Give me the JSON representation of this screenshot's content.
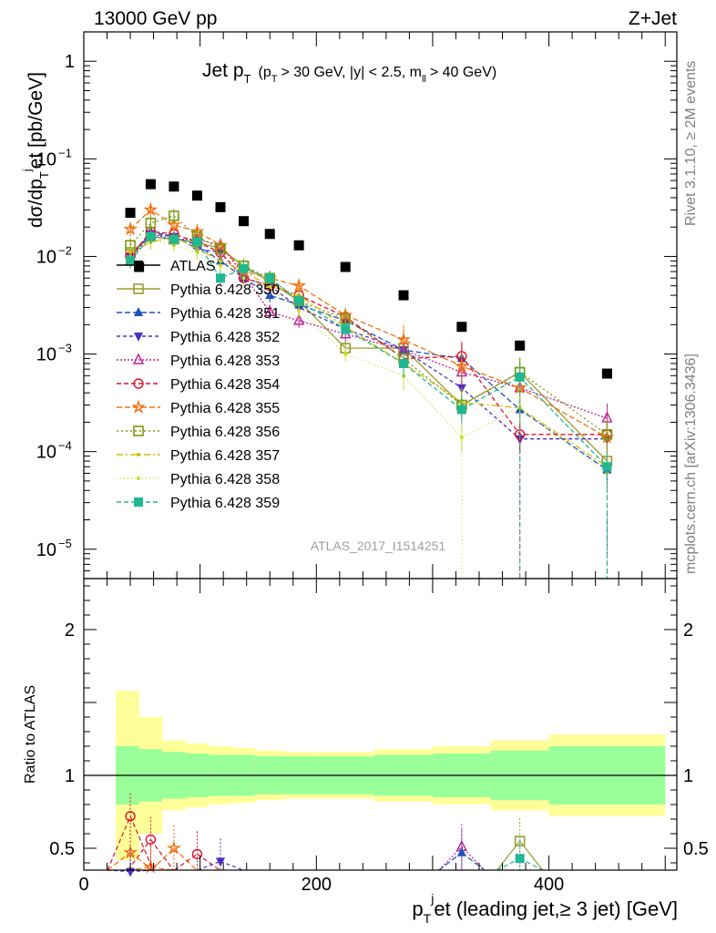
{
  "header": {
    "left": "13000 GeV pp",
    "right": "Z+Jet"
  },
  "side_text": {
    "rivet": "Rivet 3.1.10, ≥ 2M events",
    "mcplots": "mcplots.cern.ch [arXiv:1306.3436]"
  },
  "watermark": "ATLAS_2017_I1514251",
  "colors": {
    "atlas": "#000000",
    "band_inner": "#99ff99",
    "band_outer": "#ffff99"
  },
  "chart_data": [
    {
      "type": "scatter",
      "title": "Jet p_T (p_T > 30 GeV, |y| < 2.5, m_ll > 40 GeV)",
      "title_parts": {
        "main": "Jet p",
        "main_sub": "T",
        "cut_open": "(p",
        "cut_sub1": "T",
        "cut_mid": "> 30 GeV, |y| < 2.5, m",
        "cut_sub2": "ll",
        "cut_close": "> 40 GeV)"
      },
      "ylabel": "dσ/dp_T^jet [pb/GeV]",
      "ylabel_parts": {
        "a": "dσ/dp",
        "sub": "T",
        "sup": "j",
        "b": "et [pb/GeV]"
      },
      "xlim": [
        0,
        510
      ],
      "ylim": [
        5e-06,
        2
      ],
      "yscale": "log",
      "ytick_labels": {
        "1": "1",
        "0.1": "10",
        "0.01": "10",
        "0.001": "10",
        "0.0001": "10",
        "1e-05": "10"
      },
      "ytick_exps": {
        "0.1": "−1",
        "0.01": "−2",
        "0.001": "−3",
        "0.0001": "−4",
        "1e-05": "−5"
      },
      "x": [
        40,
        57.5,
        77.5,
        97.5,
        117.5,
        137.5,
        160,
        185,
        225,
        275,
        325,
        375,
        450
      ],
      "atlas": [
        0.028,
        0.055,
        0.052,
        0.042,
        0.032,
        0.023,
        0.017,
        0.013,
        0.0078,
        0.004,
        0.0019,
        0.00122,
        0.00063
      ],
      "atlas_extra": {
        "x": 47.5,
        "y": 0.0078
      },
      "legend": {
        "position": "middle-left",
        "entries": [
          "ATLAS",
          "Pythia 6.428 350",
          "Pythia 6.428 351",
          "Pythia 6.428 352",
          "Pythia 6.428 353",
          "Pythia 6.428 354",
          "Pythia 6.428 355",
          "Pythia 6.428 356",
          "Pythia 6.428 357",
          "Pythia 6.428 358",
          "Pythia 6.428 359"
        ]
      },
      "series": [
        {
          "name": "Pythia 6.428 350",
          "color": "#9b9b2e",
          "marker": "square-open",
          "dash": "",
          "values": [
            0.011,
            0.016,
            0.015,
            0.014,
            0.012,
            0.008,
            0.0055,
            0.0035,
            0.00115,
            0.00115,
            0.0003,
            0.00065,
            8e-05
          ]
        },
        {
          "name": "Pythia 6.428 351",
          "color": "#1f4fbf",
          "marker": "triangle-up",
          "dash": "6,3",
          "values": [
            0.0095,
            0.018,
            0.016,
            0.013,
            0.009,
            0.006,
            0.004,
            0.0032,
            0.0022,
            0.0011,
            0.0009,
            0.00027,
            6.5e-05
          ]
        },
        {
          "name": "Pythia 6.428 352",
          "color": "#4b2fbf",
          "marker": "triangle-down",
          "dash": "4,3",
          "values": [
            0.01,
            0.017,
            0.016,
            0.012,
            0.011,
            0.006,
            0.005,
            0.003,
            0.0018,
            0.0011,
            0.00045,
            0.000135,
            0.000135
          ]
        },
        {
          "name": "Pythia 6.428 353",
          "color": "#c02090",
          "marker": "triangle-up-open",
          "dash": "2,2",
          "values": [
            0.009,
            0.017,
            0.015,
            0.015,
            0.013,
            0.0065,
            0.0027,
            0.0022,
            0.0016,
            0.0011,
            0.00065,
            0.00045,
            0.00022
          ]
        },
        {
          "name": "Pythia 6.428 354",
          "color": "#e0102a",
          "marker": "circle-open",
          "dash": "5,3",
          "values": [
            0.01,
            0.018,
            0.017,
            0.014,
            0.011,
            0.006,
            0.005,
            0.004,
            0.0024,
            0.0009,
            0.00095,
            0.00015,
            0.00015
          ]
        },
        {
          "name": "Pythia 6.428 355",
          "color": "#f07010",
          "marker": "star",
          "dash": "6,3",
          "values": [
            0.019,
            0.03,
            0.021,
            0.018,
            0.013,
            0.007,
            0.006,
            0.005,
            0.0025,
            0.0014,
            0.00075,
            0.00045,
            0.00014
          ]
        },
        {
          "name": "Pythia 6.428 356",
          "color": "#7a9a10",
          "marker": "square-open",
          "dash": "2,3",
          "values": [
            0.013,
            0.022,
            0.026,
            0.016,
            0.012,
            0.008,
            0.006,
            0.0035,
            0.0023,
            0.0009,
            0.0003,
            0.00065,
            0.00015
          ]
        },
        {
          "name": "Pythia 6.428 357",
          "color": "#d8b800",
          "marker": "dot",
          "dash": "7,3,2,3",
          "values": [
            0.011,
            0.014,
            0.016,
            0.012,
            0.009,
            0.007,
            0.005,
            0.004,
            0.0019,
            0.0008,
            0.00032,
            0.00028,
            7e-05
          ]
        },
        {
          "name": "Pythia 6.428 358",
          "color": "#c8e020",
          "marker": "dot",
          "dash": "1,3",
          "values": [
            0.01,
            0.015,
            0.013,
            0.011,
            0.008,
            0.006,
            0.0048,
            0.0028,
            0.001,
            0.0006,
            0.00014,
            0.00028,
            6e-05
          ]
        },
        {
          "name": "Pythia 6.428 359",
          "color": "#20b890",
          "marker": "square",
          "dash": "5,3",
          "values": [
            0.009,
            0.016,
            0.015,
            0.014,
            0.006,
            0.0075,
            0.006,
            0.0035,
            0.0018,
            0.0008,
            0.00027,
            0.00058,
            7e-05
          ]
        }
      ]
    },
    {
      "type": "area",
      "ylabel": "Ratio to ATLAS",
      "xlabel": "p_T^jet (leading jet,≥ 3 jet) [GeV]",
      "xlabel_parts": {
        "a": "p",
        "sub": "T",
        "sup": "j",
        "b": "et (leading jet,≥ 3 jet) [GeV]"
      },
      "xlim": [
        0,
        510
      ],
      "ylim": [
        0.35,
        2.35
      ],
      "xticks": [
        0,
        200,
        400
      ],
      "xtick_labels": [
        "0",
        "200",
        "400"
      ],
      "yticks": [
        0.5,
        1,
        2
      ],
      "ytick_labels": [
        "0.5",
        "1",
        "2"
      ],
      "bins": [
        [
          27.5,
          47.5
        ],
        [
          47.5,
          67.5
        ],
        [
          67.5,
          87.5
        ],
        [
          87.5,
          107.5
        ],
        [
          107.5,
          127.5
        ],
        [
          127.5,
          147.5
        ],
        [
          147.5,
          172.5
        ],
        [
          172.5,
          197.5
        ],
        [
          197.5,
          250
        ],
        [
          250,
          300
        ],
        [
          300,
          350
        ],
        [
          350,
          400
        ],
        [
          400,
          500
        ]
      ],
      "band_inner": [
        0.2,
        0.18,
        0.16,
        0.15,
        0.14,
        0.14,
        0.13,
        0.13,
        0.13,
        0.14,
        0.15,
        0.17,
        0.2
      ],
      "band_outer": [
        0.58,
        0.4,
        0.24,
        0.22,
        0.2,
        0.19,
        0.17,
        0.16,
        0.16,
        0.18,
        0.2,
        0.24,
        0.28
      ],
      "ratio_points": [
        {
          "series": 6,
          "x": [
            40,
            57.5,
            77.5
          ],
          "y": [
            0.47,
            0.37,
            0.5
          ]
        },
        {
          "series": 5,
          "x": [
            40,
            57.5,
            97.5
          ],
          "y": [
            0.72,
            0.56,
            0.46
          ]
        },
        {
          "series": 3,
          "x": [
            40,
            117.5
          ],
          "y": [
            0.34,
            0.41
          ]
        },
        {
          "series": 4,
          "x": [
            325
          ],
          "y": [
            0.51
          ]
        },
        {
          "series": 2,
          "x": [
            325
          ],
          "y": [
            0.47
          ]
        },
        {
          "series": 1,
          "x": [
            375
          ],
          "y": [
            0.55
          ]
        },
        {
          "series": 10,
          "x": [
            375
          ],
          "y": [
            0.43
          ]
        }
      ]
    }
  ]
}
